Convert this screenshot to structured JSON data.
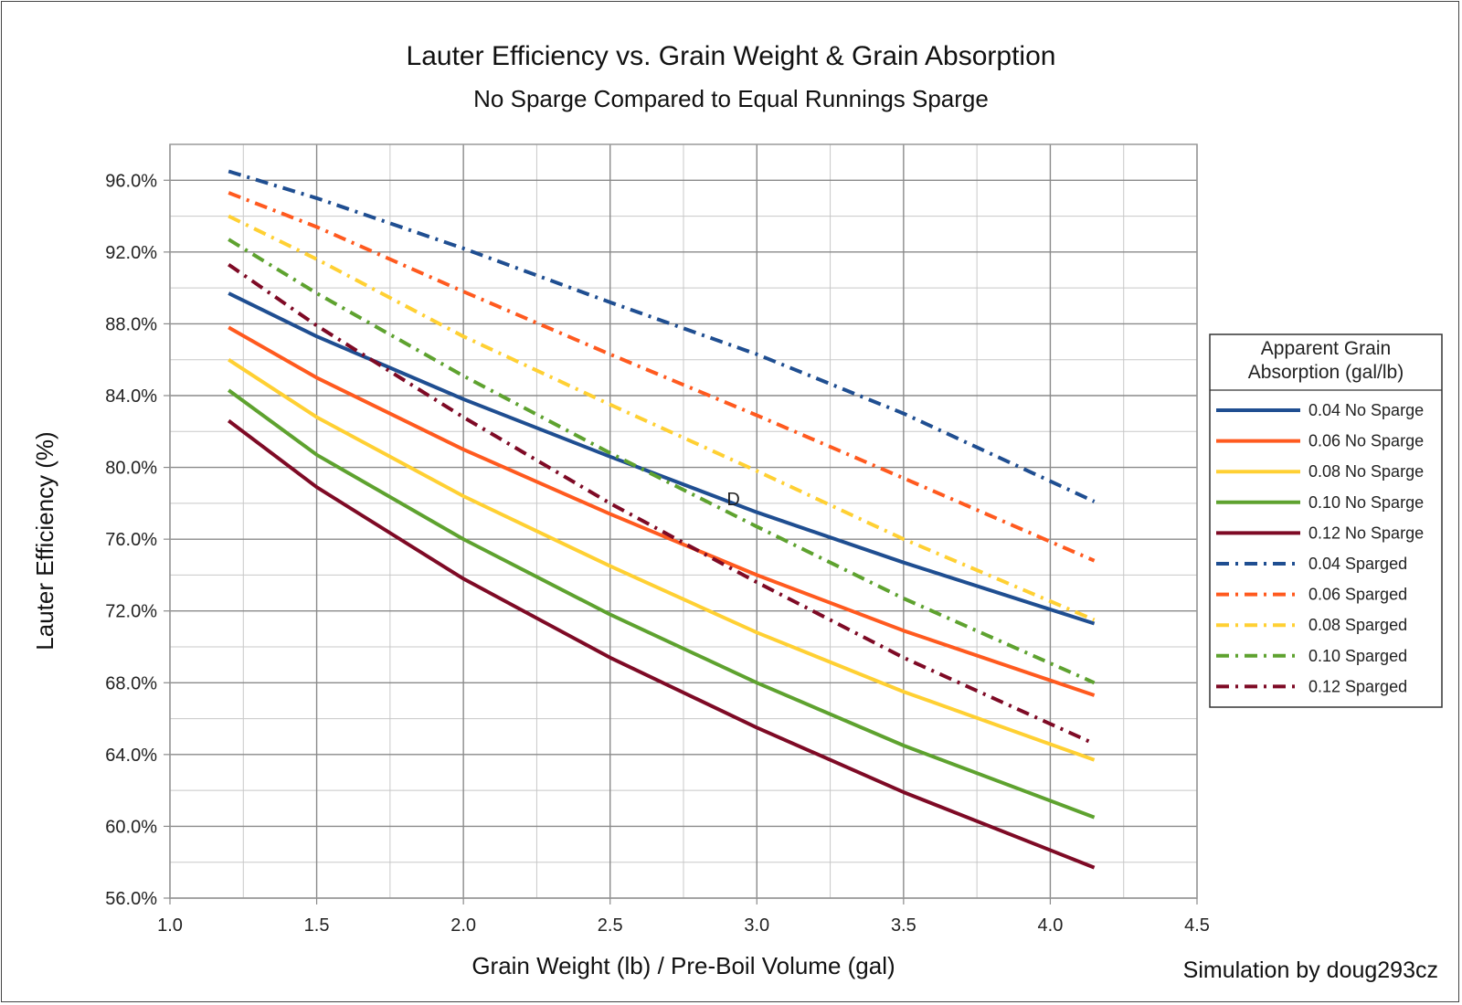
{
  "chart_data": {
    "type": "line",
    "title": "Lauter Efficiency vs. Grain Weight & Grain Absorption",
    "subtitle": "No Sparge Compared to Equal Runnings Sparge",
    "xlabel": "Grain Weight (lb) / Pre-Boil Volume (gal)",
    "ylabel": "Lauter Efficiency (%)",
    "xlim": [
      1.0,
      4.5
    ],
    "ylim": [
      56.0,
      98.0
    ],
    "x_ticks": [
      "1.0",
      "1.5",
      "2.0",
      "2.5",
      "3.0",
      "3.5",
      "4.0",
      "4.5"
    ],
    "y_ticks": [
      "56.0%",
      "60.0%",
      "64.0%",
      "68.0%",
      "72.0%",
      "76.0%",
      "80.0%",
      "84.0%",
      "88.0%",
      "92.0%",
      "96.0%"
    ],
    "grid": true,
    "legend_title": "Apparent Grain Absorption  (gal/lb)",
    "legend_position": "right",
    "x": [
      1.2,
      1.5,
      2.0,
      2.5,
      3.0,
      3.5,
      4.15
    ],
    "series": [
      {
        "name": "0.04 No Sparge",
        "color": "#1f4e91",
        "dash": "solid",
        "values": [
          89.7,
          87.3,
          83.8,
          80.6,
          77.5,
          74.7,
          71.3
        ]
      },
      {
        "name": "0.06 No Sparge",
        "color": "#ff5a1f",
        "dash": "solid",
        "values": [
          87.8,
          85.0,
          81.0,
          77.4,
          74.0,
          70.9,
          67.3
        ]
      },
      {
        "name": "0.08 No Sparge",
        "color": "#ffd033",
        "dash": "solid",
        "values": [
          86.0,
          82.8,
          78.4,
          74.5,
          70.8,
          67.5,
          63.7
        ]
      },
      {
        "name": "0.10 No Sparge",
        "color": "#5ea22f",
        "dash": "solid",
        "values": [
          84.3,
          80.7,
          76.0,
          71.8,
          68.0,
          64.5,
          60.5
        ]
      },
      {
        "name": "0.12 No Sparge",
        "color": "#7e0a25",
        "dash": "solid",
        "values": [
          82.6,
          78.9,
          73.8,
          69.4,
          65.5,
          61.9,
          57.7
        ]
      },
      {
        "name": "0.04 Sparged",
        "color": "#1f4e91",
        "dash": "dashdot",
        "values": [
          96.5,
          95.0,
          92.2,
          89.2,
          86.3,
          83.0,
          78.1
        ]
      },
      {
        "name": "0.06 Sparged",
        "color": "#ff5a1f",
        "dash": "dashdot",
        "values": [
          95.3,
          93.4,
          89.8,
          86.3,
          82.9,
          79.4,
          74.8
        ]
      },
      {
        "name": "0.08 Sparged",
        "color": "#ffd033",
        "dash": "dashdot",
        "values": [
          94.0,
          91.6,
          87.3,
          83.5,
          79.8,
          76.0,
          71.5
        ]
      },
      {
        "name": "0.10 Sparged",
        "color": "#5ea22f",
        "dash": "dashdot",
        "values": [
          92.7,
          89.7,
          85.1,
          80.8,
          76.7,
          72.7,
          68.0
        ]
      },
      {
        "name": "0.12 Sparged",
        "color": "#7e0a25",
        "dash": "dashdot",
        "values": [
          91.3,
          87.9,
          82.8,
          78.0,
          73.6,
          69.4,
          64.6
        ]
      }
    ],
    "annotations": [
      {
        "text": "D",
        "x": 2.92,
        "y": 78.3
      }
    ]
  },
  "credit": "Simulation by doug293cz"
}
